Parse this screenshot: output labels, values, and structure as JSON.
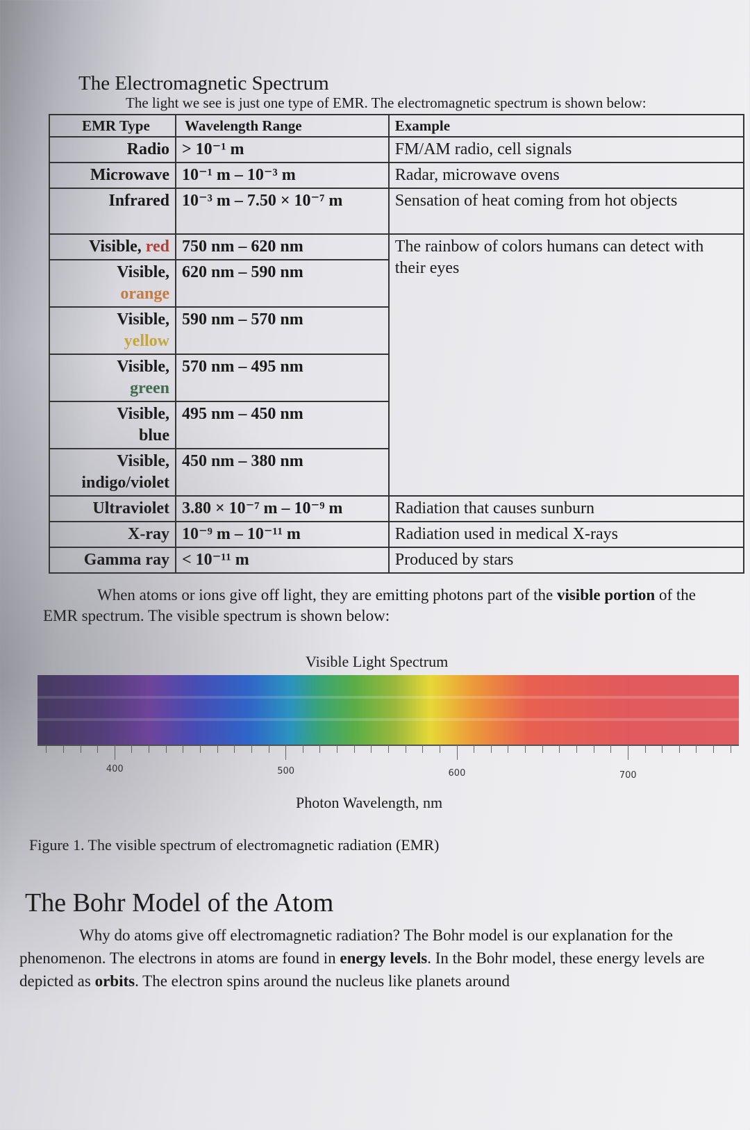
{
  "section1": {
    "title": "The Electromagnetic Spectrum",
    "intro": "The light we see is just one type of EMR. The electromagnetic spectrum is shown below:"
  },
  "table": {
    "headers": [
      "EMR Type",
      "Wavelength Range",
      "Example"
    ],
    "rows": [
      {
        "type": "Radio",
        "range": "> 10⁻¹ m",
        "example": "FM/AM radio, cell signals"
      },
      {
        "type": "Microwave",
        "range": "10⁻¹ m – 10⁻³ m",
        "example": "Radar, microwave ovens"
      },
      {
        "type": "Infrared",
        "range": "10⁻³ m – 7.50 × 10⁻⁷ m",
        "example": "Sensation of heat coming from hot objects"
      },
      {
        "type_prefix": "Visible,",
        "type_color": "red",
        "range": "750 nm – 620 nm",
        "example": "The rainbow of colors humans can detect with their eyes"
      },
      {
        "type_prefix": "Visible,",
        "type_color": "orange",
        "range": "620 nm – 590 nm"
      },
      {
        "type_prefix": "Visible,",
        "type_color": "yellow",
        "range": "590 nm – 570 nm"
      },
      {
        "type_prefix": "Visible,",
        "type_color": "green",
        "range": "570 nm – 495 nm"
      },
      {
        "type_prefix": "Visible,",
        "type_color": "blue",
        "range": "495 nm – 450 nm"
      },
      {
        "type_prefix": "Visible,",
        "type_color": "indigo/violet",
        "range": "450 nm – 380 nm"
      },
      {
        "type": "Ultraviolet",
        "range": "3.80 × 10⁻⁷ m – 10⁻⁹ m",
        "example": "Radiation that causes sunburn"
      },
      {
        "type": "X-ray",
        "range": "10⁻⁹ m – 10⁻¹¹ m",
        "example": "Radiation used in medical X-rays"
      },
      {
        "type": "Gamma ray",
        "range": "< 10⁻¹¹ m",
        "example": "Produced by stars"
      }
    ]
  },
  "paragraph1": {
    "before_bold": "When atoms or ions give off light, they are emitting photons part of the ",
    "bold": "visible portion",
    "after_bold": " of the EMR spectrum. The visible spectrum is shown below:"
  },
  "figure": {
    "title": "Visible Light Spectrum",
    "xlabel": "Photon Wavelength, nm",
    "ticks": [
      "400",
      "500",
      "600",
      "700"
    ],
    "caption": "Figure 1. The visible spectrum of electromagnetic radiation (EMR)"
  },
  "section2": {
    "title": "The Bohr Model of the Atom",
    "p_a": "Why do atoms give off electromagnetic radiation? The Bohr model is our explanation for the phenomenon. The electrons in atoms are found in ",
    "bold1": "energy levels",
    "p_b": ". In the Bohr model, these energy levels are depicted as ",
    "bold2": "orbits",
    "p_c": ". The electron spins around the nucleus like planets around"
  }
}
